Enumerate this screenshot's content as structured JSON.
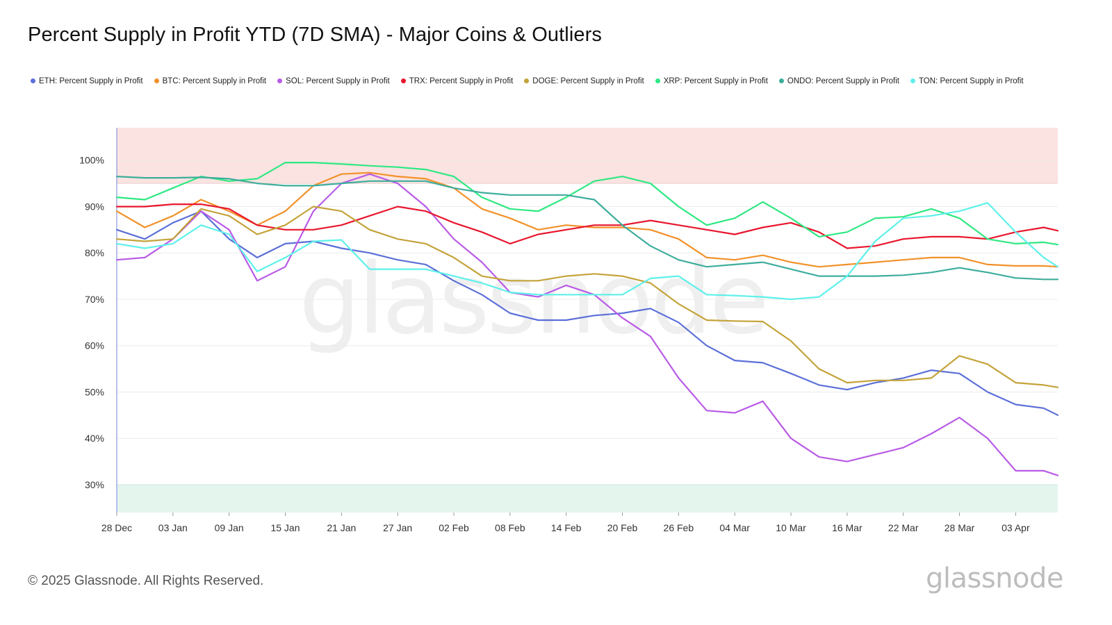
{
  "title": "Percent Supply in Profit YTD (7D SMA) - Major Coins & Outliers",
  "footer": "© 2025 Glassnode. All Rights Reserved.",
  "brand": "glassnode",
  "watermark": "glassnode",
  "chart_data": {
    "type": "line",
    "title": "Percent Supply in Profit YTD (7D SMA) - Major Coins & Outliers",
    "xlabel": "",
    "ylabel": "",
    "ylim": [
      24,
      107
    ],
    "grid": true,
    "legend_position": "top",
    "y_ticks": [
      "100%",
      "90%",
      "80%",
      "70%",
      "60%",
      "50%",
      "40%",
      "30%"
    ],
    "y_tick_values": [
      100,
      90,
      80,
      70,
      60,
      50,
      40,
      30
    ],
    "x_ticks": [
      "28 Dec",
      "03 Jan",
      "09 Jan",
      "15 Jan",
      "21 Jan",
      "27 Jan",
      "02 Feb",
      "08 Feb",
      "14 Feb",
      "20 Feb",
      "26 Feb",
      "04 Mar",
      "10 Mar",
      "16 Mar",
      "22 Mar",
      "28 Mar",
      "03 Apr"
    ],
    "x_tick_days": [
      0,
      6,
      12,
      18,
      24,
      30,
      36,
      42,
      48,
      54,
      60,
      66,
      72,
      78,
      84,
      90,
      96
    ],
    "x_range_days": [
      0,
      100.5
    ],
    "bands": [
      {
        "from": 95,
        "to": 107,
        "color": "#fbe3e1"
      },
      {
        "from": 24,
        "to": 30,
        "color": "#e4f5ee"
      }
    ],
    "x_days": [
      0,
      3,
      6,
      9,
      12,
      15,
      18,
      21,
      24,
      27,
      30,
      33,
      36,
      39,
      42,
      45,
      48,
      51,
      54,
      57,
      60,
      63,
      66,
      69,
      72,
      75,
      78,
      81,
      84,
      87,
      90,
      93,
      96,
      99,
      100.5
    ],
    "series": [
      {
        "name": "ETH: Percent Supply in Profit",
        "color": "#5b6fd8",
        "values": [
          85,
          83,
          86.5,
          89,
          83,
          79,
          82,
          82.5,
          81,
          80,
          78.5,
          77.5,
          74,
          71,
          67,
          65.5,
          65.5,
          66.5,
          67,
          68,
          65,
          60,
          56.8,
          56.3,
          54,
          51.5,
          50.5,
          52,
          53,
          54.7,
          54,
          50,
          47.3,
          46.5,
          45
        ]
      },
      {
        "name": "BTC: Percent Supply in Profit",
        "color": "#f29129",
        "values": [
          89,
          85.5,
          88,
          91.5,
          89,
          86,
          89,
          94.5,
          97,
          97.3,
          96.5,
          96,
          94,
          89.5,
          87.5,
          85,
          86,
          85.5,
          85.5,
          85,
          83,
          79,
          78.5,
          79.5,
          78,
          77,
          77.5,
          78,
          78.5,
          79,
          79,
          77.5,
          77.2,
          77.2,
          77
        ]
      },
      {
        "name": "SOL: Percent Supply in Profit",
        "color": "#b95be6",
        "values": [
          78.5,
          79,
          83,
          89,
          85,
          74,
          77,
          89,
          95,
          97,
          95,
          90,
          83,
          78,
          71.5,
          70.5,
          73,
          71,
          66,
          62,
          53,
          46,
          45.5,
          48,
          40,
          36,
          35,
          36.5,
          38,
          41,
          44.5,
          40,
          33,
          33,
          32
        ]
      },
      {
        "name": "TRX: Percent Supply in Profit",
        "color": "#e8162e",
        "values": [
          90,
          90,
          90.5,
          90.5,
          89.5,
          86,
          85,
          85,
          86,
          88,
          90,
          89,
          86.5,
          84.5,
          82,
          84,
          85,
          86,
          86,
          87,
          86,
          85,
          84,
          85.5,
          86.5,
          84.5,
          81,
          81.5,
          83,
          83.5,
          83.5,
          83,
          84.5,
          85.5,
          84.8
        ]
      },
      {
        "name": "DOGE: Percent Supply in Profit",
        "color": "#c4a33a",
        "values": [
          83,
          82.5,
          83,
          89.5,
          88,
          84,
          86,
          90,
          89,
          85,
          83,
          82,
          79,
          75,
          74,
          74,
          75,
          75.5,
          75,
          73.5,
          69,
          65.5,
          65.3,
          65.2,
          61,
          55,
          52,
          52.5,
          52.5,
          53,
          57.8,
          56,
          52,
          51.5,
          51
        ]
      },
      {
        "name": "XRP: Percent Supply in Profit",
        "color": "#2ee882",
        "values": [
          92,
          91.5,
          94,
          96.5,
          95.5,
          96,
          99.5,
          99.5,
          99.2,
          98.8,
          98.5,
          98,
          96.5,
          92,
          89.5,
          89,
          92,
          95.5,
          96.5,
          95,
          90,
          86,
          87.5,
          91,
          87.5,
          83.5,
          84.5,
          87.5,
          87.8,
          89.5,
          87.5,
          83,
          82,
          82.3,
          81.8
        ]
      },
      {
        "name": "ONDO: Percent Supply in Profit",
        "color": "#3dad9c",
        "values": [
          96.5,
          96.2,
          96.2,
          96.3,
          96,
          95,
          94.5,
          94.5,
          95,
          95.5,
          95.5,
          95.5,
          94,
          93,
          92.5,
          92.5,
          92.5,
          91.5,
          86,
          81.5,
          78.5,
          77,
          77.5,
          78,
          76.5,
          75,
          75,
          75,
          75.2,
          75.8,
          76.8,
          75.8,
          74.6,
          74.3,
          74.3
        ]
      },
      {
        "name": "TON: Percent Supply in Profit",
        "color": "#5ef0ea",
        "values": [
          82,
          81,
          82,
          86,
          84,
          76,
          79,
          82.5,
          82.8,
          76.5,
          76.5,
          76.5,
          75,
          73.5,
          71.5,
          71,
          71,
          71,
          71,
          74.5,
          75,
          71,
          70.8,
          70.5,
          70,
          70.5,
          75,
          82.5,
          87.5,
          88,
          89,
          90.8,
          84.5,
          79,
          77
        ]
      }
    ]
  }
}
